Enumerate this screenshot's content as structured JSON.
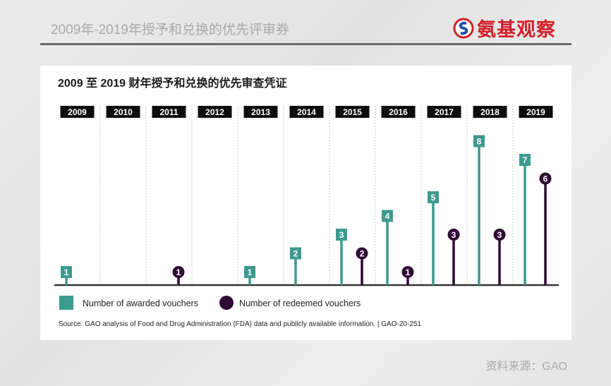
{
  "header": {
    "title": "2009年-2019年授予和兑换的优先评审券",
    "logo_text": "氨基观察"
  },
  "footer": {
    "source": "资料来源：GAO"
  },
  "chart_data": {
    "type": "lollipop",
    "title": "2009 至 2019 财年授予和兑换的优先审查凭证",
    "categories": [
      "2009",
      "2010",
      "2011",
      "2012",
      "2013",
      "2014",
      "2015",
      "2016",
      "2017",
      "2018",
      "2019"
    ],
    "series": [
      {
        "name": "Number of awarded vouchers",
        "color": "#3d9a8e",
        "marker": "square",
        "values": [
          1,
          null,
          null,
          null,
          1,
          2,
          3,
          4,
          5,
          8,
          7
        ]
      },
      {
        "name": "Number of redeemed vouchers",
        "color": "#2e0a34",
        "marker": "circle",
        "values": [
          null,
          null,
          1,
          null,
          null,
          null,
          2,
          1,
          3,
          3,
          6
        ]
      }
    ],
    "source": "Source: GAO analysis of Food and Drug Administration (FDA) data and publicly available information.  |  GAO-20-251",
    "legend": "bottom-left"
  }
}
